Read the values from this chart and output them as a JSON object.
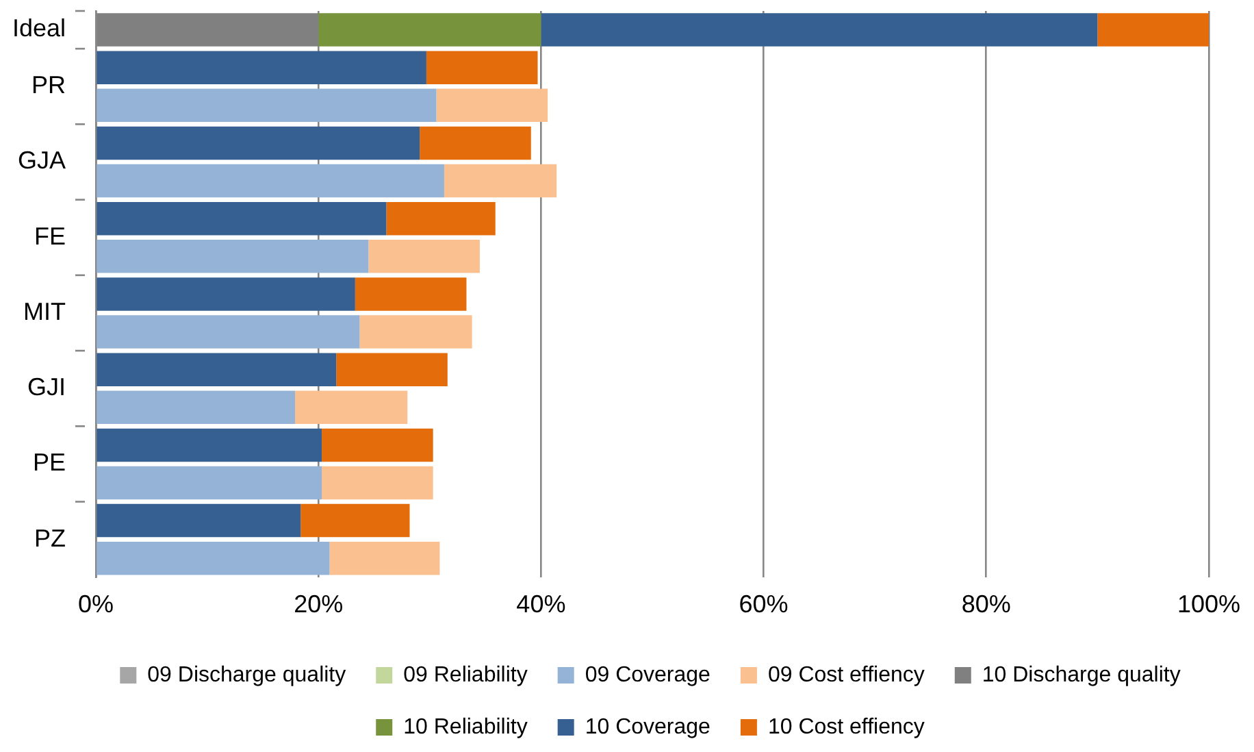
{
  "chart_data": {
    "type": "bar",
    "orientation": "horizontal",
    "stacked": true,
    "categories": [
      "Ideal",
      "PR",
      null,
      "GJA",
      null,
      "FE",
      null,
      "MIT",
      null,
      "GJI",
      null,
      "PE",
      null,
      "PZ",
      null
    ],
    "series": [
      {
        "name": "09 Discharge quality",
        "color": "#a6a6a6",
        "values": [
          null,
          null,
          null,
          null,
          null,
          null,
          null,
          null,
          null,
          null,
          null,
          null,
          null,
          null,
          null
        ]
      },
      {
        "name": "09 Reliability",
        "color": "#c3d69b",
        "values": [
          null,
          null,
          null,
          null,
          null,
          null,
          null,
          null,
          null,
          null,
          null,
          null,
          null,
          null,
          null
        ]
      },
      {
        "name": "09 Coverage",
        "color": "#95b3d7",
        "values": [
          null,
          null,
          30.6,
          null,
          31.3,
          null,
          24.5,
          null,
          23.7,
          null,
          17.9,
          null,
          20.3,
          null,
          21.0
        ]
      },
      {
        "name": "09 Cost effiency",
        "color": "#fac090",
        "values": [
          null,
          null,
          10.0,
          null,
          10.1,
          null,
          10.0,
          null,
          10.1,
          null,
          10.1,
          null,
          10.0,
          null,
          9.9
        ]
      },
      {
        "name": "10 Discharge quality",
        "color": "#808080",
        "values": [
          20,
          null,
          null,
          null,
          null,
          null,
          null,
          null,
          null,
          null,
          null,
          null,
          null,
          null,
          null
        ]
      },
      {
        "name": "10 Reliability",
        "color": "#77933c",
        "values": [
          20,
          null,
          null,
          null,
          null,
          null,
          null,
          null,
          null,
          null,
          null,
          null,
          null,
          null,
          null
        ]
      },
      {
        "name": "10 Coverage",
        "color": "#366092",
        "values": [
          50,
          29.7,
          null,
          29.1,
          null,
          26.1,
          null,
          23.3,
          null,
          21.6,
          null,
          20.3,
          null,
          18.4,
          null
        ]
      },
      {
        "name": "10 Cost effiency",
        "color": "#e46c0a",
        "values": [
          10,
          10.0,
          null,
          10.0,
          null,
          9.8,
          null,
          10.0,
          null,
          10.0,
          null,
          10.0,
          null,
          9.8,
          null
        ]
      }
    ],
    "xlim": [
      0,
      100
    ],
    "xticks": [
      {
        "value": 0,
        "label": "0%"
      },
      {
        "value": 20,
        "label": "20%"
      },
      {
        "value": 40,
        "label": "40%"
      },
      {
        "value": 60,
        "label": "60%"
      },
      {
        "value": 80,
        "label": "80%"
      },
      {
        "value": 100,
        "label": "100%"
      }
    ],
    "grid": "x",
    "legend": "bottom"
  }
}
